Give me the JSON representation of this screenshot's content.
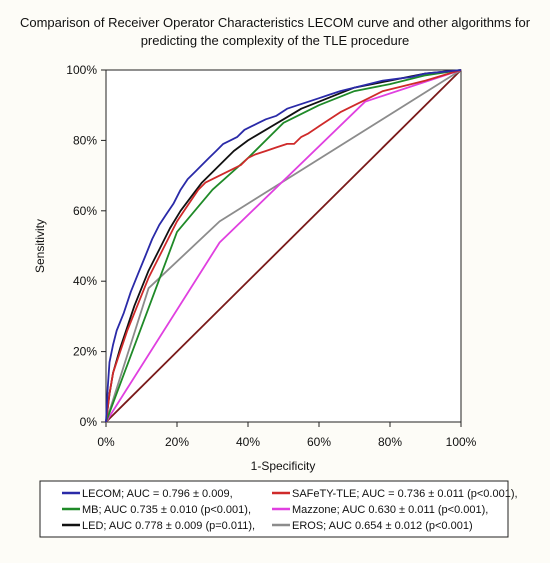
{
  "chart_data": {
    "type": "line",
    "title_line1": "Comparison of Receiver Operator Characteristics LECOM curve and other algorithms for",
    "title_line2": "predicting the complexity of the TLE procedure",
    "xlabel": "1-Specificity",
    "ylabel": "Sensitivity",
    "xlim": [
      0,
      100
    ],
    "ylim": [
      0,
      100
    ],
    "x_ticks": [
      "0%",
      "20%",
      "40%",
      "60%",
      "80%",
      "100%"
    ],
    "y_ticks": [
      "0%",
      "20%",
      "40%",
      "60%",
      "80%",
      "100%"
    ],
    "grid": false,
    "legend_position": "bottom",
    "series": [
      {
        "name": "LECOM; AUC = 0.796 ± 0.009,",
        "color": "#2a2aa8",
        "x": [
          0,
          0.5,
          1,
          2,
          3,
          5,
          7,
          9,
          11,
          13,
          15,
          17,
          19,
          21,
          23,
          25,
          27,
          29,
          31,
          33,
          35,
          37,
          39,
          41,
          43,
          45,
          48,
          51,
          54,
          57,
          60,
          63,
          66,
          70,
          74,
          78,
          82,
          86,
          90,
          95,
          100
        ],
        "y": [
          0,
          10,
          17,
          22,
          26,
          31,
          37,
          42,
          47,
          52,
          56,
          59,
          62,
          66,
          69,
          71,
          73,
          75,
          77,
          79,
          80,
          81,
          83,
          84,
          85,
          86,
          87,
          89,
          90,
          91,
          92,
          93,
          94,
          95,
          96,
          97,
          97.5,
          98,
          99,
          99.5,
          100
        ]
      },
      {
        "name": "SAFeTY-TLE; AUC = 0.736 ± 0.011 (p<0.001),",
        "color": "#cf2a2a",
        "x": [
          0,
          1,
          2,
          4,
          6,
          8,
          10,
          12,
          14,
          16,
          18,
          20,
          22,
          24,
          26,
          28,
          30,
          32,
          34,
          36,
          38,
          40,
          42,
          45,
          48,
          51,
          53,
          55,
          57,
          60,
          63,
          66,
          70,
          74,
          78,
          82,
          86,
          90,
          95,
          100
        ],
        "y": [
          0,
          8,
          14,
          20,
          26,
          31,
          36,
          41,
          45,
          49,
          53,
          57,
          60,
          63,
          66,
          68,
          69,
          70,
          71,
          72,
          73,
          75,
          76,
          77,
          78,
          79,
          79,
          81,
          82,
          84,
          86,
          88,
          90,
          92,
          94,
          95,
          96,
          97,
          98.5,
          100
        ]
      },
      {
        "name": "MB; AUC 0.735 ± 0.010 (p<0.001),",
        "color": "#1f8a28",
        "x": [
          0,
          20,
          30,
          40,
          50,
          60,
          70,
          80,
          90,
          100
        ],
        "y": [
          0,
          54,
          66,
          75,
          85,
          90,
          94,
          96,
          98.5,
          100
        ]
      },
      {
        "name": "Mazzone; AUC 0.630 ± 0.011 (p<0.001),",
        "color": "#e040e0",
        "x": [
          0,
          32,
          73,
          100
        ],
        "y": [
          0,
          51,
          91,
          100
        ]
      },
      {
        "name": "LED; AUC 0.778 ± 0.009 (p=0.011),",
        "color": "#111111",
        "x": [
          0,
          1,
          2,
          4,
          6,
          8,
          10,
          12,
          15,
          18,
          21,
          24,
          27,
          30,
          33,
          36,
          40,
          45,
          50,
          55,
          60,
          65,
          70,
          75,
          80,
          85,
          90,
          95,
          100
        ],
        "y": [
          0,
          8,
          14,
          21,
          27,
          33,
          38,
          43,
          49,
          55,
          60,
          64,
          68,
          71,
          74,
          77,
          80,
          83,
          86,
          89,
          91,
          93,
          95,
          96,
          97,
          98,
          99,
          99.5,
          100
        ]
      },
      {
        "name": "EROS; AUC 0.654 ± 0.012 (p<0.001)",
        "color": "#8c8c8c",
        "x": [
          0,
          12,
          32,
          100
        ],
        "y": [
          0,
          38,
          57,
          100
        ]
      },
      {
        "name": "",
        "color": "#7a1a1a",
        "x": [
          0,
          100
        ],
        "y": [
          0,
          100
        ]
      }
    ]
  }
}
